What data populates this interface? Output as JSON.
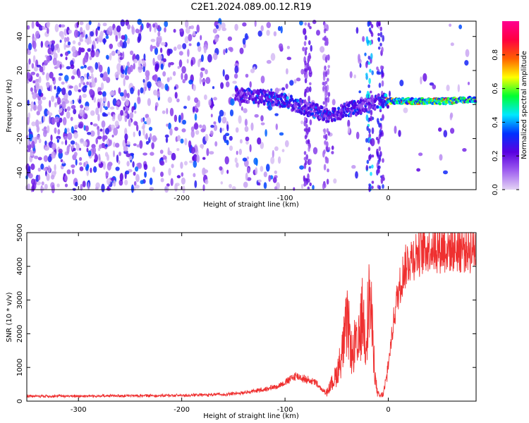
{
  "figure": {
    "title": "C2E1.2024.089.00.12.R19"
  },
  "chart_data": [
    {
      "type": "heatmap",
      "xlabel": "Height of straight line (km)",
      "ylabel": "Frequency (Hz)",
      "xlim": [
        -350,
        85
      ],
      "ylim": [
        -50,
        49
      ],
      "xticks": [
        -300,
        -200,
        -100,
        0
      ],
      "yticks": [
        -40,
        -20,
        0,
        20,
        40
      ],
      "grid": false,
      "colorbar": {
        "label": "Normalized spectral amplitude",
        "range": [
          0,
          1
        ],
        "ticks": [
          "0.0",
          "0.2",
          "0.4",
          "0.6",
          "0.8"
        ],
        "colormap": [
          "#e4d4f4",
          "#a060f0",
          "#5a00e0",
          "#0030ff",
          "#00e8ff",
          "#00ff30",
          "#ffff00",
          "#ff6000",
          "#ff0040",
          "#ff0090"
        ]
      },
      "signal_ridge": {
        "x": [
          -145,
          -130,
          -115,
          -100,
          -90,
          -80,
          -70,
          -60,
          -50,
          -40,
          -30,
          -20,
          -15,
          -5,
          0,
          20,
          40,
          60,
          85
        ],
        "freq": [
          6,
          5,
          4,
          2,
          0,
          -2,
          -4,
          -6,
          -5,
          -3,
          -2,
          0,
          1,
          2,
          2,
          2,
          2,
          2,
          3
        ],
        "amplitude": [
          0.3,
          0.35,
          0.4,
          0.45,
          0.4,
          0.35,
          0.4,
          0.35,
          0.35,
          0.4,
          0.35,
          0.3,
          0.3,
          0.5,
          0.75,
          0.8,
          0.85,
          0.9,
          0.75
        ]
      }
    },
    {
      "type": "line",
      "xlabel": "Height of straight line (km)",
      "ylabel": "SNR (10 * v/v)",
      "xlim": [
        -350,
        85
      ],
      "ylim": [
        0,
        5000
      ],
      "xticks": [
        -300,
        -200,
        -100,
        0
      ],
      "yticks": [
        0,
        1000,
        2000,
        3000,
        4000,
        5000
      ],
      "grid": false,
      "color": "#ef3030",
      "series": [
        {
          "x": [
            -350,
            -300,
            -250,
            -200,
            -160,
            -140,
            -120,
            -110,
            -100,
            -90,
            -80,
            -70,
            -65,
            -60,
            -55,
            -50,
            -45,
            -40,
            -37,
            -35,
            -32,
            -30,
            -27,
            -25,
            -22,
            -20,
            -18,
            -16,
            -14,
            -12,
            -10,
            -8,
            -5,
            -2,
            0,
            3,
            6,
            10,
            15,
            20,
            30,
            40,
            60,
            85
          ],
          "y": [
            150,
            150,
            160,
            170,
            200,
            250,
            350,
            420,
            550,
            750,
            650,
            550,
            350,
            250,
            500,
            800,
            1400,
            2300,
            1900,
            1200,
            1800,
            1400,
            2100,
            2600,
            1800,
            2500,
            3200,
            2300,
            1300,
            500,
            200,
            150,
            200,
            600,
            1100,
            1800,
            2600,
            3300,
            3900,
            4200,
            4450,
            4600,
            4550,
            4550
          ]
        }
      ]
    }
  ]
}
